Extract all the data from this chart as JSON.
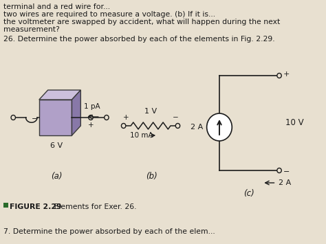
{
  "bg_color": "#e8e0d0",
  "text_color": "#1a1a1a",
  "box_color": "#b0a0c8",
  "box_top_color": "#ccc0dc",
  "box_right_color": "#8878a8",
  "box_edge_color": "#3a3a3a",
  "wire_color": "#1a1a1a",
  "caption_square_color": "#2a6b2a",
  "fig_a_label": "(a)",
  "fig_b_label": "(b)",
  "fig_c_label": "(c)",
  "label_1pA": "1 pA",
  "label_1V": "1 V",
  "label_10mA": "10 mA",
  "label_2A_b": "2 A",
  "label_10V": "10 V",
  "label_2A_c": "2 A",
  "label_6V": "6 V",
  "label_plus": "+",
  "label_minus": "−",
  "caption": "FIGURE 2.29  Elements for Exer. 26.",
  "top_text_lines": [
    "terminal and a red wire for...",
    "two wires are required to measure a voltage. (b) If it is...",
    "the voltmeter are swapped by accident, what will happen during the next",
    "measurement?",
    "26. Determine the power absorbed by each of the elements in Fig. 2.29."
  ]
}
